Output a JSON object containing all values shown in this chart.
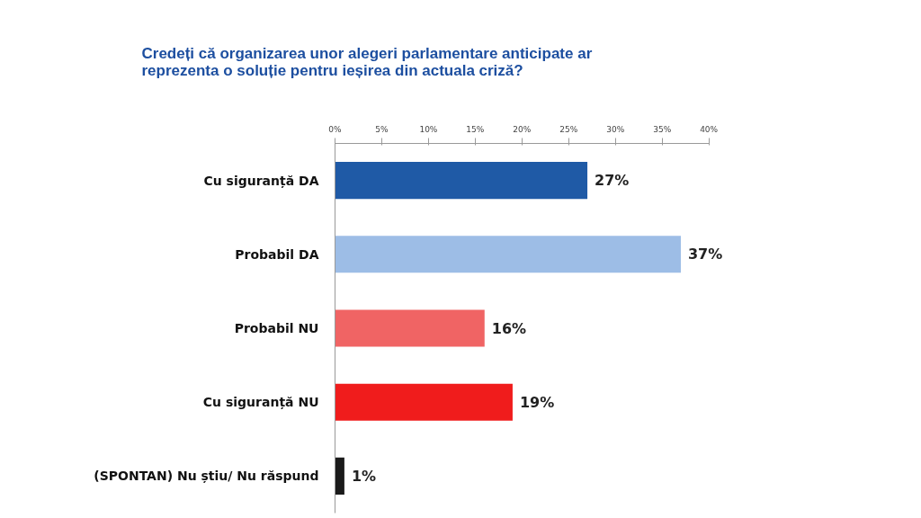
{
  "chart_data": {
    "type": "bar",
    "orientation": "horizontal",
    "title": "Credeți că organizarea unor alegeri parlamentare anticipate ar reprezenta o soluție pentru ieșirea din actuala criză?",
    "categories": [
      "Cu siguranță DA",
      "Probabil DA",
      "Probabil NU",
      "Cu siguranță NU",
      "(SPONTAN) Nu știu/ Nu răspund"
    ],
    "values": [
      27,
      37,
      16,
      19,
      1
    ],
    "colors": [
      "#1f5aa6",
      "#9dbde6",
      "#f06464",
      "#f01c1c",
      "#1a1a1a"
    ],
    "value_labels": [
      "27%",
      "37%",
      "16%",
      "19%",
      "1%"
    ],
    "xlim": [
      0,
      40
    ],
    "xticks": [
      {
        "value": 0,
        "label": "0%"
      },
      {
        "value": 5,
        "label": "5%"
      },
      {
        "value": 10,
        "label": "10%"
      },
      {
        "value": 15,
        "label": "15%"
      },
      {
        "value": 20,
        "label": "20%"
      },
      {
        "value": 25,
        "label": "25%"
      },
      {
        "value": 30,
        "label": "30%"
      },
      {
        "value": 35,
        "label": "35%"
      },
      {
        "value": 40,
        "label": "40%"
      }
    ],
    "grid": false
  }
}
